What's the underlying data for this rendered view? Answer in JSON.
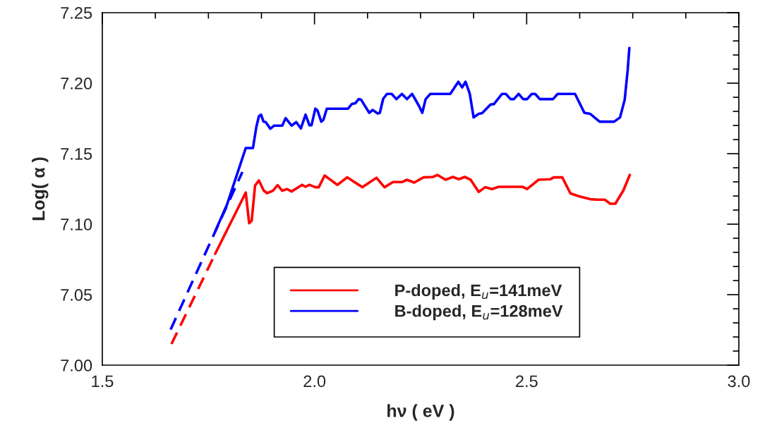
{
  "chart_data": {
    "type": "line",
    "xlabel": "hν ( eV )",
    "ylabel": "Log( α )",
    "legend": "bottom",
    "grid": false,
    "xlim": [
      1.5,
      3.0
    ],
    "xticks": [
      {
        "value": 1.5,
        "label": "1.5"
      },
      {
        "value": 1.625,
        "label": null
      },
      {
        "value": 1.75,
        "label": null
      },
      {
        "value": 1.875,
        "label": null
      },
      {
        "value": 2.0,
        "label": "2.0"
      },
      {
        "value": 2.125,
        "label": null
      },
      {
        "value": 2.25,
        "label": null
      },
      {
        "value": 2.375,
        "label": null
      },
      {
        "value": 2.5,
        "label": "2.5"
      },
      {
        "value": 2.625,
        "label": null
      },
      {
        "value": 2.75,
        "label": null
      },
      {
        "value": 2.875,
        "label": null
      },
      {
        "value": 3.0,
        "label": "3.0"
      }
    ],
    "ylim": [
      7.0,
      7.25
    ],
    "yticks": [
      {
        "value": 7.0,
        "label": "7.00"
      },
      {
        "value": 7.01,
        "label": null
      },
      {
        "value": 7.02,
        "label": null
      },
      {
        "value": 7.03,
        "label": null
      },
      {
        "value": 7.04,
        "label": null
      },
      {
        "value": 7.05,
        "label": "7.05"
      },
      {
        "value": 7.06,
        "label": null
      },
      {
        "value": 7.07,
        "label": null
      },
      {
        "value": 7.08,
        "label": null
      },
      {
        "value": 7.09,
        "label": null
      },
      {
        "value": 7.1,
        "label": "7.10"
      },
      {
        "value": 7.11,
        "label": null
      },
      {
        "value": 7.12,
        "label": null
      },
      {
        "value": 7.13,
        "label": null
      },
      {
        "value": 7.14,
        "label": null
      },
      {
        "value": 7.15,
        "label": "7.15"
      },
      {
        "value": 7.16,
        "label": null
      },
      {
        "value": 7.17,
        "label": null
      },
      {
        "value": 7.18,
        "label": null
      },
      {
        "value": 7.19,
        "label": null
      },
      {
        "value": 7.2,
        "label": "7.20"
      },
      {
        "value": 7.21,
        "label": null
      },
      {
        "value": 7.22,
        "label": null
      },
      {
        "value": 7.23,
        "label": null
      },
      {
        "value": 7.24,
        "label": null
      },
      {
        "value": 7.25,
        "label": "7.25"
      }
    ],
    "series": [
      {
        "name": "P-doped, E$_{u}$=141meV",
        "color": "#ff0000",
        "line_style": "solid",
        "x": [
          1.766,
          1.838,
          1.846,
          1.852,
          1.86,
          1.869,
          1.88,
          1.888,
          1.902,
          1.913,
          1.924,
          1.935,
          1.946,
          1.971,
          1.979,
          1.988,
          2.002,
          2.01,
          2.024,
          2.054,
          2.077,
          2.113,
          2.146,
          2.165,
          2.185,
          2.207,
          2.218,
          2.235,
          2.257,
          2.279,
          2.29,
          2.309,
          2.326,
          2.34,
          2.354,
          2.368,
          2.387,
          2.402,
          2.418,
          2.434,
          2.49,
          2.501,
          2.528,
          2.556,
          2.564,
          2.584,
          2.603,
          2.622,
          2.65,
          2.667,
          2.684,
          2.697,
          2.709,
          2.728,
          2.743
        ],
        "values": [
          7.079,
          7.1224,
          7.1007,
          7.1024,
          7.1274,
          7.131,
          7.124,
          7.122,
          7.1237,
          7.1277,
          7.1237,
          7.1249,
          7.1232,
          7.1279,
          7.1265,
          7.1279,
          7.1262,
          7.1262,
          7.1345,
          7.1279,
          7.1332,
          7.1262,
          7.1329,
          7.1262,
          7.1299,
          7.1299,
          7.1315,
          7.1295,
          7.1332,
          7.1335,
          7.1349,
          7.1315,
          7.1335,
          7.1319,
          7.1335,
          7.1315,
          7.1229,
          7.1262,
          7.1249,
          7.1265,
          7.1265,
          7.1249,
          7.1315,
          7.1319,
          7.1332,
          7.1332,
          7.1219,
          7.1199,
          7.1177,
          7.1174,
          7.1174,
          7.1145,
          7.1145,
          7.124,
          7.1349
        ]
      },
      {
        "name": "B-doped, E$_{u}$=128meV",
        "color": "#0000ff",
        "line_style": "solid",
        "x": [
          1.766,
          1.794,
          1.838,
          1.855,
          1.863,
          1.869,
          1.874,
          1.88,
          1.885,
          1.896,
          1.905,
          1.924,
          1.932,
          1.946,
          1.957,
          1.968,
          1.979,
          1.988,
          1.993,
          2.002,
          2.007,
          2.016,
          2.021,
          2.029,
          2.079,
          2.088,
          2.096,
          2.104,
          2.11,
          2.129,
          2.137,
          2.149,
          2.154,
          2.162,
          2.171,
          2.182,
          2.193,
          2.206,
          2.218,
          2.23,
          2.246,
          2.254,
          2.262,
          2.273,
          2.32,
          2.339,
          2.348,
          2.356,
          2.366,
          2.375,
          2.387,
          2.395,
          2.415,
          2.423,
          2.442,
          2.451,
          2.462,
          2.47,
          2.481,
          2.492,
          2.501,
          2.512,
          2.52,
          2.531,
          2.562,
          2.573,
          2.614,
          2.636,
          2.65,
          2.672,
          2.706,
          2.72,
          2.731,
          2.738,
          2.742
        ],
        "values": [
          7.0949,
          7.114,
          7.154,
          7.154,
          7.169,
          7.1765,
          7.1777,
          7.1727,
          7.1724,
          7.1677,
          7.1699,
          7.1699,
          7.1752,
          7.1699,
          7.1724,
          7.1679,
          7.1777,
          7.1702,
          7.1702,
          7.1819,
          7.1807,
          7.1727,
          7.174,
          7.1819,
          7.1819,
          7.1852,
          7.1857,
          7.1887,
          7.1882,
          7.179,
          7.181,
          7.1785,
          7.179,
          7.189,
          7.1924,
          7.1924,
          7.1887,
          7.1924,
          7.1887,
          7.1924,
          7.184,
          7.179,
          7.1887,
          7.1924,
          7.1924,
          7.201,
          7.197,
          7.201,
          7.1924,
          7.1757,
          7.1782,
          7.1787,
          7.1849,
          7.1852,
          7.1924,
          7.1924,
          7.1887,
          7.1887,
          7.1924,
          7.1887,
          7.1887,
          7.1924,
          7.1924,
          7.1887,
          7.1887,
          7.1924,
          7.1924,
          7.179,
          7.1782,
          7.1727,
          7.1727,
          7.1757,
          7.1882,
          7.209,
          7.225
        ]
      },
      {
        "color": "#ff0000",
        "line_style": "dashed",
        "x": [
          1.663,
          1.766
        ],
        "values": [
          7.015,
          7.079
        ]
      },
      {
        "color": "#0000ff",
        "line_style": "dashed",
        "x": [
          1.661,
          1.83
        ],
        "values": [
          7.0253,
          7.137
        ]
      }
    ]
  }
}
